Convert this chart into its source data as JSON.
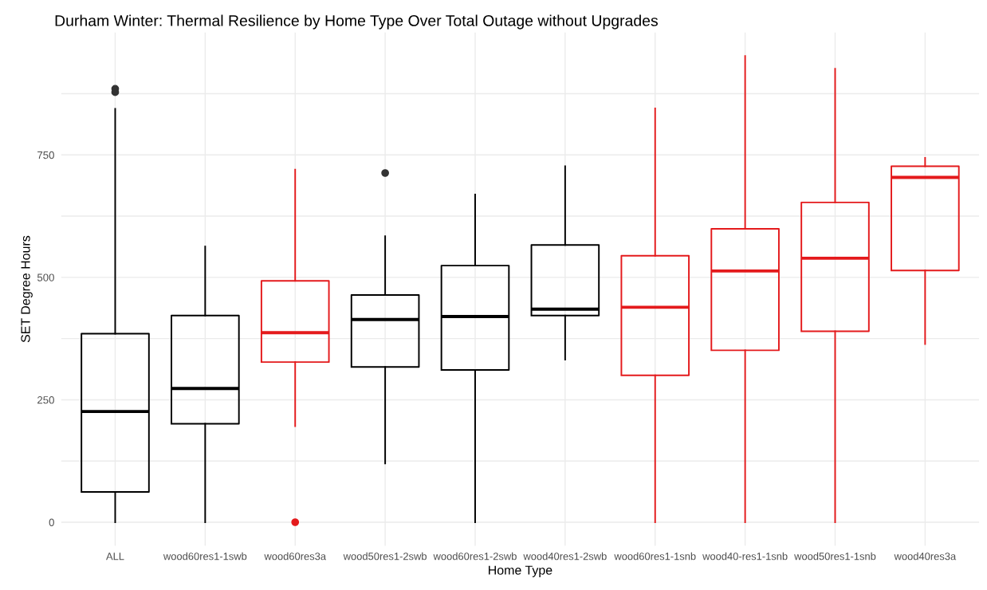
{
  "chart_data": {
    "type": "box",
    "title": "Durham Winter: Thermal Resilience by Home Type Over Total Outage without Upgrades",
    "xlabel": "Home Type",
    "ylabel": "SET Degree Hours",
    "categories": [
      "ALL",
      "wood60res1-1swb",
      "wood60res3a",
      "wood50res1-2swb",
      "wood60res1-2swb",
      "wood40res1-2swb",
      "wood60res1-1snb",
      "wood40-res1-1snb",
      "wood50res1-1snb",
      "wood40res3a"
    ],
    "colors": [
      "#000000",
      "#000000",
      "#e41a1c",
      "#000000",
      "#000000",
      "#000000",
      "#e41a1c",
      "#e41a1c",
      "#e41a1c",
      "#e41a1c"
    ],
    "boxes": [
      {
        "low": 0,
        "q1": 62,
        "median": 226,
        "q3": 385,
        "high": 844,
        "outliers": [
          878,
          885
        ]
      },
      {
        "low": 0,
        "q1": 201,
        "median": 273,
        "q3": 422,
        "high": 563
      },
      {
        "low": 196,
        "q1": 327,
        "median": 387,
        "q3": 493,
        "high": 720,
        "outliers": [
          0
        ]
      },
      {
        "low": 120,
        "q1": 317,
        "median": 414,
        "q3": 464,
        "high": 584,
        "outliers": [
          713
        ]
      },
      {
        "low": 0,
        "q1": 311,
        "median": 420,
        "q3": 524,
        "high": 669
      },
      {
        "low": 332,
        "q1": 422,
        "median": 435,
        "q3": 566,
        "high": 727
      },
      {
        "low": 0,
        "q1": 300,
        "median": 439,
        "q3": 544,
        "high": 845
      },
      {
        "low": 0,
        "q1": 351,
        "median": 513,
        "q3": 599,
        "high": 952
      },
      {
        "low": 0,
        "q1": 390,
        "median": 539,
        "q3": 653,
        "high": 926
      },
      {
        "low": 364,
        "q1": 514,
        "median": 704,
        "q3": 727,
        "high": 744
      }
    ],
    "ylim": [
      -48,
      1000
    ],
    "yticks": [
      0,
      {
        "value": 125,
        "label": null
      },
      250,
      {
        "value": 375,
        "label": null
      },
      500,
      {
        "value": 625,
        "label": null
      },
      750,
      {
        "value": 875,
        "label": null
      }
    ],
    "grid": true,
    "legend": false
  }
}
